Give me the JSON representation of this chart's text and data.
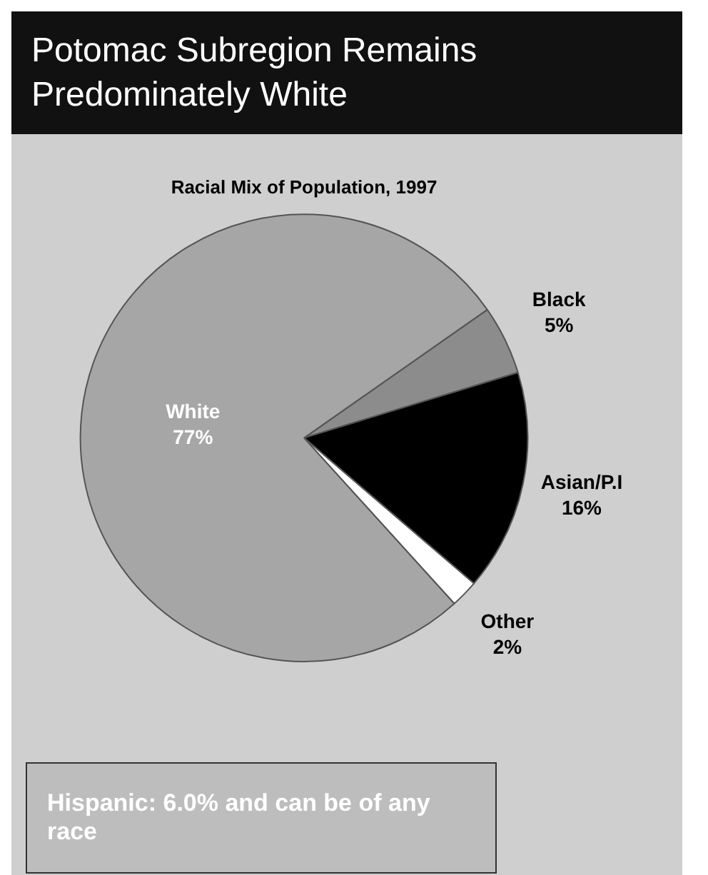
{
  "chart_data": {
    "type": "pie",
    "title": "Potomac Subregion Remains Predominately White",
    "subtitle": "Racial Mix of Population, 1997",
    "categories": [
      "Black",
      "Asian/P.I",
      "Other",
      "White"
    ],
    "values": [
      5,
      16,
      2,
      77
    ],
    "value_labels": [
      "5%",
      "16%",
      "2%",
      "77%"
    ],
    "colors": [
      "#8c8c8c",
      "#000000",
      "#ffffff",
      "#a6a6a6"
    ],
    "annotations": [
      "Hispanic: 6.0% and can be of any race"
    ]
  }
}
